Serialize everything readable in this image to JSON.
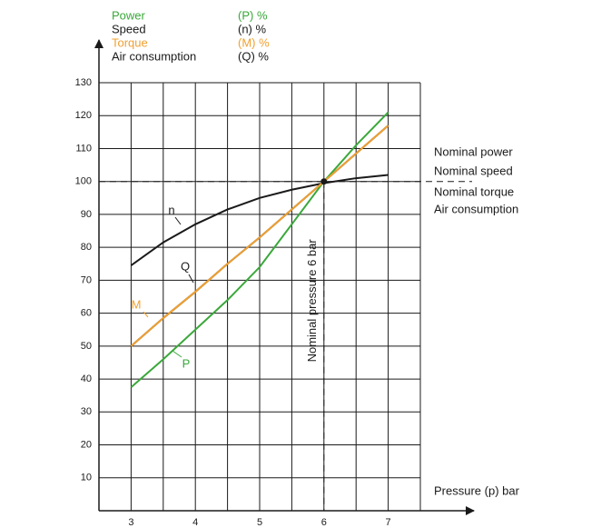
{
  "chart_data": {
    "type": "line",
    "x_label": "Pressure (p) bar",
    "x": [
      3,
      3.5,
      4,
      4.5,
      5,
      5.5,
      6,
      6.5,
      7
    ],
    "series": [
      {
        "name": "Power",
        "legend_symbol": "(P) %",
        "curve_label": "P",
        "color": "#3aa83a",
        "values": [
          37.5,
          46,
          55,
          64,
          74,
          87,
          100,
          111,
          121
        ]
      },
      {
        "name": "Speed",
        "legend_symbol": "(n) %",
        "curve_label": "n",
        "color": "#1a1a1a",
        "values": [
          74.5,
          81.5,
          87,
          91.5,
          95,
          97.5,
          99.5,
          101,
          102
        ]
      },
      {
        "name": "Torque",
        "legend_symbol": "(M) %",
        "curve_label": "M",
        "color": "#f0a030",
        "values": [
          50,
          58.5,
          66.5,
          75,
          83,
          91.5,
          100,
          108.5,
          117
        ]
      },
      {
        "name": "Air consumption",
        "legend_symbol": "(Q) %",
        "curve_label": "Q",
        "color": "#1a1a1a",
        "values": [
          50,
          58.5,
          66.5,
          75,
          83,
          91.5,
          100,
          108.5,
          117
        ]
      }
    ],
    "reference": {
      "x": 6,
      "y": 100,
      "label": "Nominal pressure 6 bar"
    },
    "annotations": [
      "Nominal power",
      "Nominal speed",
      "Nominal torque",
      "Air consumption"
    ],
    "xlim": [
      2.5,
      7.5
    ],
    "xticks": [
      3,
      4,
      5,
      6,
      7
    ],
    "ylim": [
      0,
      130
    ],
    "yticks": [
      10,
      20,
      30,
      40,
      50,
      60,
      70,
      80,
      90,
      100,
      110,
      120,
      130
    ],
    "grid": true
  }
}
